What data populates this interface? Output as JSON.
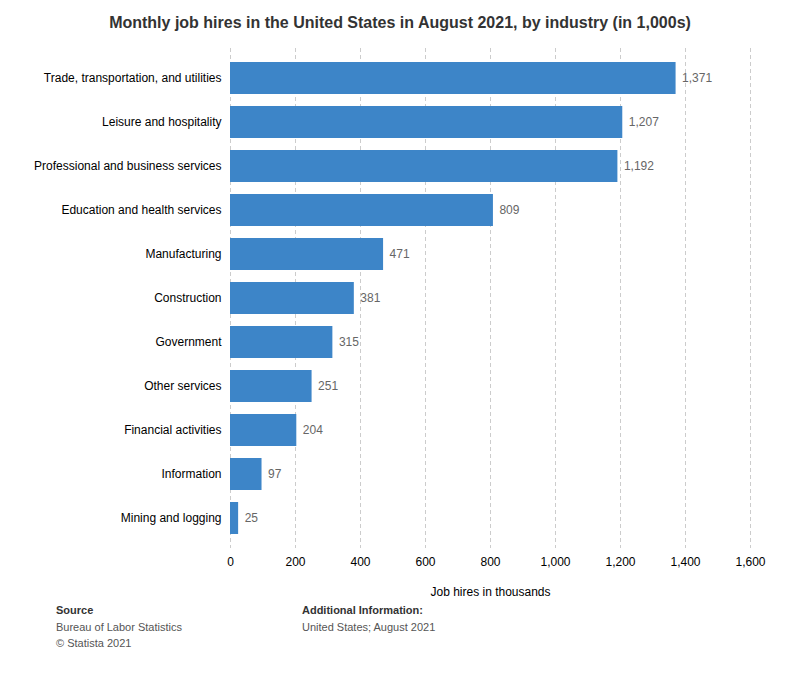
{
  "chart_data": {
    "type": "bar",
    "orientation": "horizontal",
    "title": "Monthly job hires in the United States in August 2021, by industry (in 1,000s)",
    "xlabel": "Job hires in thousands",
    "categories": [
      "Mining and logging",
      "Information",
      "Financial activities",
      "Other services",
      "Government",
      "Construction",
      "Manufacturing",
      "Education and health services",
      "Professional and business services",
      "Leisure and hospitality",
      "Trade, transportation, and utilities"
    ],
    "values": [
      25,
      97,
      204,
      251,
      315,
      381,
      471,
      809,
      1192,
      1207,
      1371
    ],
    "value_labels": [
      "25",
      "97",
      "204",
      "251",
      "315",
      "381",
      "471",
      "809",
      "1,192",
      "1,207",
      "1,371"
    ],
    "data_labels": true,
    "color": "#3d85c8",
    "xlim": [
      0,
      1600
    ],
    "xticks": [
      0,
      200,
      400,
      600,
      800,
      {
        "value": 1000,
        "label": "1,000"
      },
      {
        "value": 1200,
        "label": "1,200"
      },
      {
        "value": 1400,
        "label": "1,400"
      },
      {
        "value": 1600,
        "label": "1,600"
      }
    ],
    "grid": true,
    "annotations": [
      "Source\nBureau of Labor Statistics\n© Statista 2021",
      "Additional Information:\nUnited States; August 2021"
    ]
  }
}
